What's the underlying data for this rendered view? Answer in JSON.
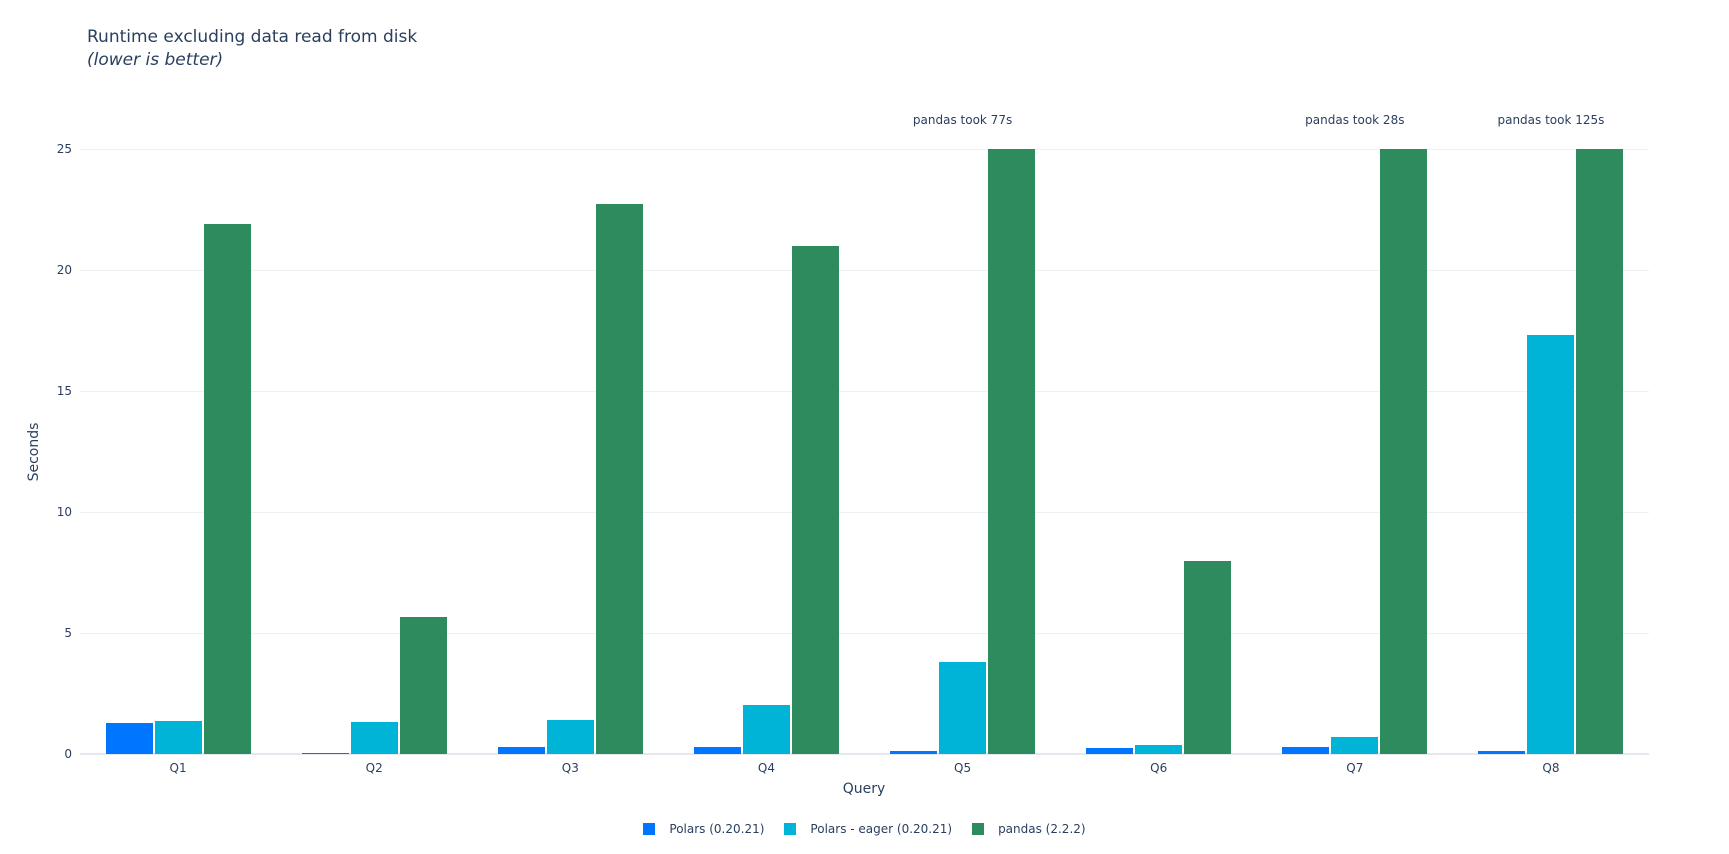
{
  "title": {
    "main": "Runtime excluding data read from disk",
    "subtitle": "(lower is better)"
  },
  "axes": {
    "ylabel": "Seconds",
    "xlabel": "Query",
    "yticks": [
      "0",
      "5",
      "10",
      "15",
      "20",
      "25"
    ]
  },
  "colors": {
    "polars": "#0075ff",
    "polars_eager": "#00b4d8",
    "pandas": "#2e8b5e"
  },
  "legend": [
    {
      "label": "Polars (0.20.21)",
      "color": "#0075ff"
    },
    {
      "label": "Polars - eager (0.20.21)",
      "color": "#00b4d8"
    },
    {
      "label": "pandas (2.2.2)",
      "color": "#2e8b5e"
    }
  ],
  "annotations": [
    {
      "category": "Q5",
      "text": "pandas took 77s"
    },
    {
      "category": "Q7",
      "text": "pandas took 28s"
    },
    {
      "category": "Q8",
      "text": "pandas took 125s"
    }
  ],
  "chart_data": {
    "type": "bar",
    "title": "Runtime excluding data read from disk (lower is better)",
    "xlabel": "Query",
    "ylabel": "Seconds",
    "ylim": [
      0,
      25
    ],
    "grid": true,
    "legend_position": "bottom",
    "categories": [
      "Q1",
      "Q2",
      "Q3",
      "Q4",
      "Q5",
      "Q6",
      "Q7",
      "Q8"
    ],
    "series": [
      {
        "name": "Polars (0.20.21)",
        "values": [
          1.27,
          0.04,
          0.29,
          0.3,
          0.12,
          0.23,
          0.29,
          0.12
        ]
      },
      {
        "name": "Polars - eager (0.20.21)",
        "values": [
          1.35,
          1.31,
          1.42,
          2.02,
          3.79,
          0.36,
          0.72,
          17.31
        ]
      },
      {
        "name": "pandas (2.2.2)",
        "values": [
          21.9,
          5.65,
          22.73,
          21.0,
          25,
          7.96,
          25,
          25
        ]
      }
    ],
    "annotations": [
      {
        "x": "Q5",
        "text": "pandas took 77s"
      },
      {
        "x": "Q7",
        "text": "pandas took 28s"
      },
      {
        "x": "Q8",
        "text": "pandas took 125s"
      }
    ],
    "clipped_values_note": "pandas bars for Q5, Q7, Q8 clipped at 25"
  }
}
